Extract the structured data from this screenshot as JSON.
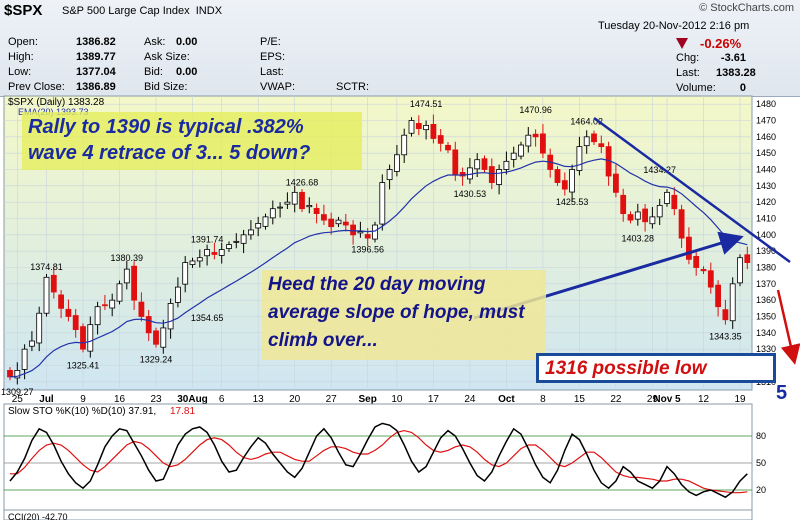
{
  "header": {
    "symbol": "$SPX",
    "name": "S&P 500 Large Cap Index",
    "exchange": "INDX",
    "logo": "© StockCharts.com",
    "date": "Tuesday  20-Nov-2012  2:16 pm",
    "change_pct": "-0.26%",
    "quote_left": [
      {
        "label": "Open:",
        "value": "1386.82"
      },
      {
        "label": "High:",
        "value": "1389.77"
      },
      {
        "label": "Low:",
        "value": "1377.04"
      },
      {
        "label": "Prev Close:",
        "value": "1386.89"
      }
    ],
    "quote_mid": [
      {
        "label": "Ask:",
        "value": "0.00"
      },
      {
        "label": "Ask Size:",
        "value": ""
      },
      {
        "label": "Bid:",
        "value": "0.00"
      },
      {
        "label": "Bid Size:",
        "value": ""
      }
    ],
    "quote_right": [
      {
        "label": "P/E:",
        "value": ""
      },
      {
        "label": "EPS:",
        "value": ""
      },
      {
        "label": "Last:",
        "value": ""
      },
      {
        "label": "VWAP:",
        "value": ""
      }
    ],
    "sctr_label": "SCTR:",
    "quote_far": [
      {
        "label": "Chg:",
        "value": "-3.61"
      },
      {
        "label": "Last:",
        "value": "1383.28"
      },
      {
        "label": "Volume:",
        "value": "0"
      }
    ]
  },
  "chart_data": {
    "type": "candlestick",
    "legend_price": "$SPX (Daily) 1383.28",
    "legend_ema": "EMA(20) 1393.73",
    "ylim": [
      1305,
      1485
    ],
    "y_ticks": [
      1310,
      1320,
      1330,
      1340,
      1350,
      1360,
      1370,
      1380,
      1390,
      1400,
      1410,
      1420,
      1430,
      1440,
      1450,
      1460,
      1470,
      1480
    ],
    "x_ticks": [
      {
        "i": 1,
        "label": "25"
      },
      {
        "i": 5,
        "label": "Jul"
      },
      {
        "i": 10,
        "label": "9"
      },
      {
        "i": 15,
        "label": "16"
      },
      {
        "i": 20,
        "label": "23"
      },
      {
        "i": 25,
        "label": "30Aug"
      },
      {
        "i": 29,
        "label": "6"
      },
      {
        "i": 34,
        "label": "13"
      },
      {
        "i": 39,
        "label": "20"
      },
      {
        "i": 44,
        "label": "27"
      },
      {
        "i": 49,
        "label": "Sep"
      },
      {
        "i": 53,
        "label": "10"
      },
      {
        "i": 58,
        "label": "17"
      },
      {
        "i": 63,
        "label": "24"
      },
      {
        "i": 68,
        "label": "Oct"
      },
      {
        "i": 73,
        "label": "8"
      },
      {
        "i": 78,
        "label": "15"
      },
      {
        "i": 83,
        "label": "22"
      },
      {
        "i": 88,
        "label": "29"
      },
      {
        "i": 90,
        "label": "Nov 5"
      },
      {
        "i": 95,
        "label": "12"
      },
      {
        "i": 100,
        "label": "19"
      }
    ],
    "close": [
      1313,
      1317,
      1330,
      1335,
      1352,
      1374,
      1365,
      1355,
      1350,
      1342,
      1330,
      1345,
      1356,
      1357,
      1360,
      1370,
      1379,
      1360,
      1350,
      1340,
      1333,
      1343,
      1358,
      1368,
      1383,
      1384,
      1386,
      1391,
      1388,
      1391,
      1394,
      1396,
      1400,
      1403,
      1407,
      1411,
      1416,
      1417,
      1420,
      1426,
      1416,
      1418,
      1413,
      1409,
      1405,
      1409,
      1406,
      1400,
      1402,
      1398,
      1406,
      1432,
      1440,
      1449,
      1461,
      1470,
      1465,
      1467,
      1459,
      1456,
      1452,
      1437,
      1436,
      1441,
      1446,
      1440,
      1432,
      1440,
      1445,
      1450,
      1455,
      1461,
      1460,
      1450,
      1440,
      1432,
      1428,
      1440,
      1454,
      1460,
      1457,
      1454,
      1436,
      1426,
      1413,
      1409,
      1414,
      1408,
      1411,
      1418,
      1426,
      1416,
      1398,
      1385,
      1380,
      1378,
      1368,
      1356,
      1348,
      1370,
      1386,
      1383
    ],
    "labels": [
      {
        "i": 1,
        "v": 1309.27,
        "text": "1309.27",
        "pos": "below"
      },
      {
        "i": 5,
        "v": 1374.81,
        "text": "1374.81",
        "pos": "above"
      },
      {
        "i": 10,
        "v": 1325.41,
        "text": "1325.41",
        "pos": "below"
      },
      {
        "i": 16,
        "v": 1380.39,
        "text": "1380.39",
        "pos": "above"
      },
      {
        "i": 20,
        "v": 1329.24,
        "text": "1329.24",
        "pos": "below"
      },
      {
        "i": 27,
        "v": 1391.74,
        "text": "1391.74",
        "pos": "above"
      },
      {
        "i": 27,
        "v": 1354.65,
        "text": "1354.65",
        "pos": "below"
      },
      {
        "i": 40,
        "v": 1426.68,
        "text": "1426.68",
        "pos": "above"
      },
      {
        "i": 49,
        "v": 1396.56,
        "text": "1396.56",
        "pos": "below"
      },
      {
        "i": 57,
        "v": 1474.51,
        "text": "1474.51",
        "pos": "above"
      },
      {
        "i": 63,
        "v": 1430.53,
        "text": "1430.53",
        "pos": "below"
      },
      {
        "i": 72,
        "v": 1470.96,
        "text": "1470.96",
        "pos": "above"
      },
      {
        "i": 77,
        "v": 1425.53,
        "text": "1425.53",
        "pos": "below"
      },
      {
        "i": 79,
        "v": 1464.02,
        "text": "1464.02",
        "pos": "above"
      },
      {
        "i": 89,
        "v": 1434.27,
        "text": "1434.27",
        "pos": "above"
      },
      {
        "i": 86,
        "v": 1403.28,
        "text": "1403.28",
        "pos": "below"
      },
      {
        "i": 98,
        "v": 1343.35,
        "text": "1343.35",
        "pos": "below"
      }
    ],
    "sto_legend_label": "Slow STO %K(10) %D(10) 37.91,",
    "sto_legend_value": "17.81",
    "sto_ticks": [
      20,
      50,
      80
    ],
    "sto_k": [
      30,
      40,
      55,
      75,
      88,
      84,
      70,
      52,
      38,
      28,
      22,
      30,
      48,
      68,
      80,
      88,
      86,
      72,
      58,
      42,
      30,
      32,
      50,
      70,
      82,
      88,
      90,
      84,
      70,
      52,
      40,
      42,
      56,
      68,
      78,
      72,
      60,
      50,
      40,
      34,
      44,
      62,
      80,
      88,
      78,
      62,
      48,
      46,
      60,
      76,
      90,
      94,
      92,
      86,
      70,
      52,
      40,
      46,
      62,
      78,
      86,
      80,
      66,
      50,
      36,
      30,
      40,
      58,
      74,
      88,
      82,
      66,
      48,
      34,
      28,
      42,
      64,
      82,
      76,
      60,
      42,
      28,
      22,
      30,
      46,
      40,
      30,
      26,
      22,
      30,
      46,
      38,
      26,
      18,
      14,
      18,
      20,
      16,
      12,
      18,
      30,
      38
    ],
    "sto_d": [
      38,
      38,
      45,
      55,
      64,
      70,
      72,
      70,
      64,
      56,
      48,
      42,
      40,
      46,
      54,
      62,
      70,
      74,
      72,
      66,
      58,
      50,
      46,
      48,
      54,
      62,
      70,
      76,
      78,
      76,
      70,
      62,
      56,
      54,
      56,
      60,
      62,
      62,
      58,
      54,
      52,
      52,
      58,
      64,
      68,
      68,
      66,
      62,
      60,
      60,
      64,
      70,
      78,
      84,
      86,
      84,
      78,
      70,
      64,
      62,
      64,
      68,
      70,
      68,
      62,
      54,
      48,
      46,
      50,
      58,
      66,
      70,
      70,
      64,
      56,
      48,
      46,
      50,
      56,
      62,
      62,
      56,
      48,
      40,
      36,
      34,
      34,
      33,
      32,
      30,
      30,
      32,
      32,
      30,
      26,
      22,
      20,
      19,
      18,
      17,
      17,
      18
    ]
  },
  "annotations": {
    "note1_line1": "Rally to 1390 is typical .382%",
    "note1_line2": "wave 4 retrace of 3... 5 down?",
    "note2_line1": "Heed the 20 day moving",
    "note2_line2": "average slope of hope, must",
    "note2_line3": "climb over...",
    "low_box": "1316 possible low",
    "wave_label": "5"
  },
  "cci_legend": "CCI(20) -42.70",
  "colors": {
    "up": "#000000",
    "down": "#e01010",
    "ema": "#2233aa",
    "trend": "#1a2aa0",
    "bg_gradient_top": "#f4f8c8",
    "bg_gradient_bottom": "#cfe6f2"
  }
}
